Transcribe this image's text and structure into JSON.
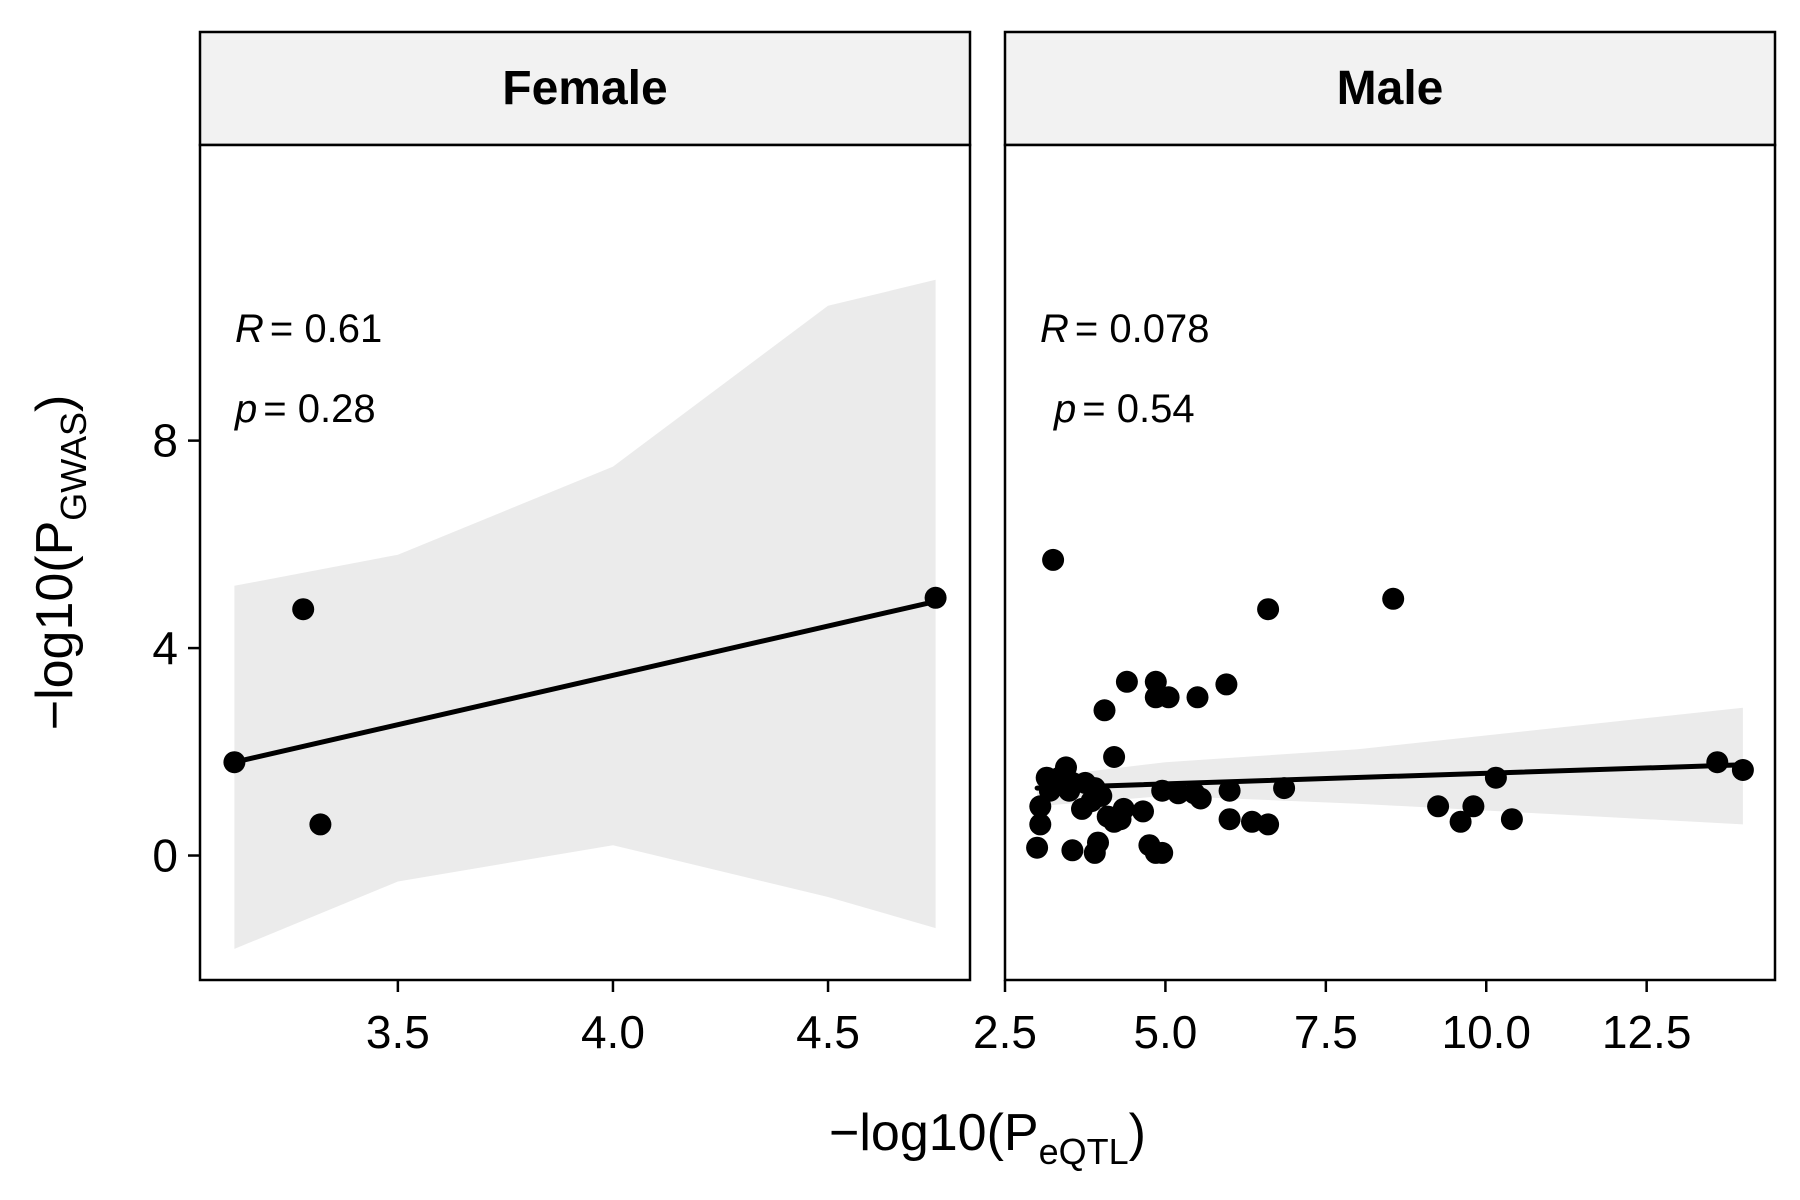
{
  "chart_data": {
    "type": "scatter",
    "xlabel": "−log10(P eQTL)",
    "xlabel_parts": {
      "prefix": "−log10(P",
      "sub": "eQTL",
      "suffix": ")"
    },
    "ylabel": "−log10(P GWAS)",
    "ylabel_parts": {
      "prefix": "−log10(P",
      "sub": "GWAS",
      "suffix": ")"
    },
    "ylim": [
      -2.4,
      13.7
    ],
    "yticks": [
      0,
      4,
      8
    ],
    "grid": false,
    "legend": "none",
    "colors": {
      "point": "#000000",
      "fit_line": "#000000",
      "ribbon": "#ebebeb",
      "strip_bg": "#f2f2f2"
    },
    "panels": [
      {
        "name": "Female",
        "stats": {
          "r_label": "R",
          "r_value": "= 0.61",
          "p_label": "p",
          "p_value": "= 0.28"
        },
        "xlim": [
          3.04,
          4.83
        ],
        "xticks": [
          3.5,
          4.0,
          4.5
        ],
        "xtick_labels": [
          "3.5",
          "4.0",
          "4.5"
        ],
        "points": [
          {
            "x": 3.12,
            "y": 1.8
          },
          {
            "x": 3.28,
            "y": 4.75
          },
          {
            "x": 3.32,
            "y": 0.6
          },
          {
            "x": 4.75,
            "y": 4.97
          }
        ],
        "fit": {
          "x": [
            3.12,
            4.75
          ],
          "y": [
            1.8,
            4.9
          ]
        },
        "ci_ribbon": {
          "x": [
            3.12,
            3.5,
            4.0,
            4.5,
            4.75
          ],
          "upper": [
            5.2,
            5.8,
            7.5,
            10.6,
            11.1
          ],
          "lower": [
            -1.8,
            -0.5,
            0.2,
            -0.8,
            -1.4
          ]
        }
      },
      {
        "name": "Male",
        "stats": {
          "r_label": "R",
          "r_value": "= 0.078",
          "p_label": "p",
          "p_value": "= 0.54"
        },
        "xlim": [
          2.5,
          14.5
        ],
        "xticks": [
          2.5,
          5.0,
          7.5,
          10.0,
          12.5
        ],
        "xtick_labels": [
          "2.5",
          "5.0",
          "7.5",
          "10.0",
          "12.5"
        ],
        "points": [
          {
            "x": 3.25,
            "y": 5.7
          },
          {
            "x": 8.55,
            "y": 4.95
          },
          {
            "x": 6.6,
            "y": 4.75
          },
          {
            "x": 4.4,
            "y": 3.35
          },
          {
            "x": 4.85,
            "y": 3.35
          },
          {
            "x": 5.95,
            "y": 3.3
          },
          {
            "x": 4.85,
            "y": 3.05
          },
          {
            "x": 5.05,
            "y": 3.05
          },
          {
            "x": 5.5,
            "y": 3.05
          },
          {
            "x": 4.05,
            "y": 2.8
          },
          {
            "x": 4.2,
            "y": 1.9
          },
          {
            "x": 3.45,
            "y": 1.7
          },
          {
            "x": 3.15,
            "y": 1.5
          },
          {
            "x": 3.35,
            "y": 1.5
          },
          {
            "x": 3.55,
            "y": 1.4
          },
          {
            "x": 3.75,
            "y": 1.4
          },
          {
            "x": 3.9,
            "y": 1.3
          },
          {
            "x": 3.2,
            "y": 1.25
          },
          {
            "x": 3.5,
            "y": 1.25
          },
          {
            "x": 4.0,
            "y": 1.15
          },
          {
            "x": 3.85,
            "y": 1.05
          },
          {
            "x": 4.95,
            "y": 1.25
          },
          {
            "x": 5.2,
            "y": 1.2
          },
          {
            "x": 5.45,
            "y": 1.2
          },
          {
            "x": 5.55,
            "y": 1.1
          },
          {
            "x": 6.0,
            "y": 1.25
          },
          {
            "x": 6.85,
            "y": 1.3
          },
          {
            "x": 3.05,
            "y": 0.95
          },
          {
            "x": 3.7,
            "y": 0.9
          },
          {
            "x": 4.35,
            "y": 0.9
          },
          {
            "x": 4.65,
            "y": 0.85
          },
          {
            "x": 4.1,
            "y": 0.75
          },
          {
            "x": 4.3,
            "y": 0.7
          },
          {
            "x": 4.2,
            "y": 0.65
          },
          {
            "x": 3.05,
            "y": 0.6
          },
          {
            "x": 6.0,
            "y": 0.7
          },
          {
            "x": 6.35,
            "y": 0.65
          },
          {
            "x": 6.6,
            "y": 0.6
          },
          {
            "x": 3.0,
            "y": 0.15
          },
          {
            "x": 3.55,
            "y": 0.1
          },
          {
            "x": 3.95,
            "y": 0.25
          },
          {
            "x": 3.9,
            "y": 0.05
          },
          {
            "x": 4.75,
            "y": 0.2
          },
          {
            "x": 4.85,
            "y": 0.05
          },
          {
            "x": 4.95,
            "y": 0.05
          },
          {
            "x": 9.25,
            "y": 0.95
          },
          {
            "x": 9.6,
            "y": 0.65
          },
          {
            "x": 9.8,
            "y": 0.95
          },
          {
            "x": 10.15,
            "y": 1.5
          },
          {
            "x": 10.4,
            "y": 0.7
          },
          {
            "x": 13.6,
            "y": 1.8
          },
          {
            "x": 14.0,
            "y": 1.65
          }
        ],
        "fit": {
          "x": [
            3.0,
            14.0
          ],
          "y": [
            1.3,
            1.75
          ]
        },
        "ci_ribbon": {
          "x": [
            3.0,
            5.0,
            8.0,
            11.0,
            14.0
          ],
          "upper": [
            1.5,
            1.8,
            2.05,
            2.45,
            2.85
          ],
          "lower": [
            0.95,
            1.15,
            1.0,
            0.8,
            0.6
          ]
        }
      }
    ]
  }
}
